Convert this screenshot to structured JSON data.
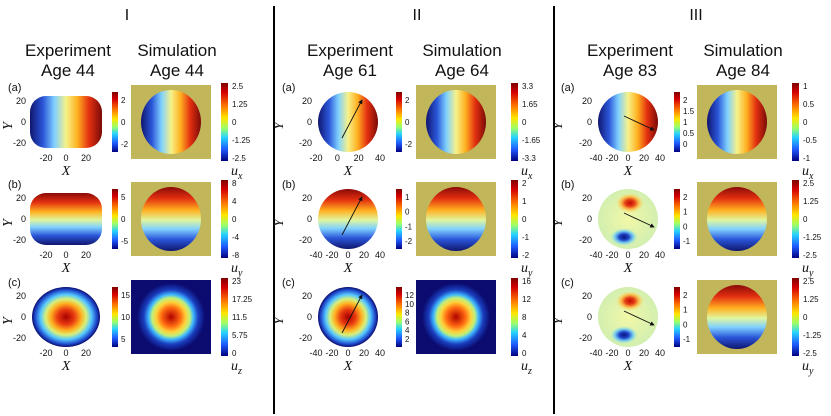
{
  "groups": [
    {
      "roman": "I",
      "left_header": [
        "Experiment",
        "Age 44"
      ],
      "right_header": [
        "Simulation",
        "Age 44"
      ],
      "rows": [
        {
          "label": "(a)",
          "var": "x",
          "exp_yticks": [
            "20",
            "0",
            "-20"
          ],
          "exp_xticks": [
            "-20",
            "0",
            "20"
          ],
          "exp_cticks": [
            "2",
            "0",
            "-2"
          ],
          "sim_cticks": [
            "2.5",
            "1.25",
            "0",
            "-1.25",
            "-2.5"
          ]
        },
        {
          "label": "(b)",
          "var": "y",
          "exp_yticks": [
            "20",
            "0",
            "-20"
          ],
          "exp_xticks": [
            "-20",
            "0",
            "20"
          ],
          "exp_cticks": [
            "5",
            "0",
            "-5"
          ],
          "sim_cticks": [
            "8",
            "4",
            "0",
            "-4",
            "-8"
          ]
        },
        {
          "label": "(c)",
          "var": "z",
          "exp_yticks": [
            "20",
            "0",
            "-20"
          ],
          "exp_xticks": [
            "-20",
            "0",
            "20"
          ],
          "exp_cticks": [
            "15",
            "10",
            "5"
          ],
          "sim_cticks": [
            "23",
            "17.25",
            "11.5",
            "5.75",
            "0"
          ]
        }
      ]
    },
    {
      "roman": "II",
      "left_header": [
        "Experiment",
        "Age 61"
      ],
      "right_header": [
        "Simulation",
        "Age 64"
      ],
      "rows": [
        {
          "label": "(a)",
          "var": "x",
          "exp_yticks": [
            "20",
            "0",
            "-20"
          ],
          "exp_xticks": [
            "-20",
            "0",
            "20",
            "40"
          ],
          "exp_cticks": [
            "2",
            "0",
            "-2"
          ],
          "sim_cticks": [
            "3.3",
            "1.65",
            "0",
            "-1.65",
            "-3.3"
          ]
        },
        {
          "label": "(b)",
          "var": "y",
          "exp_yticks": [
            "20",
            "0",
            "-20"
          ],
          "exp_xticks": [
            "-40",
            "-20",
            "0",
            "20",
            "40"
          ],
          "exp_cticks": [
            "1",
            "0",
            "-1",
            "-2"
          ],
          "sim_cticks": [
            "2",
            "1",
            "0",
            "-1",
            "-2"
          ]
        },
        {
          "label": "(c)",
          "var": "z",
          "exp_yticks": [
            "20",
            "0",
            "-20"
          ],
          "exp_xticks": [
            "-40",
            "-20",
            "0",
            "20",
            "40"
          ],
          "exp_cticks": [
            "12",
            "10",
            "8",
            "6",
            "4",
            "2"
          ],
          "sim_cticks": [
            "16",
            "12",
            "8",
            "4",
            "0"
          ]
        }
      ]
    },
    {
      "roman": "III",
      "left_header": [
        "Experiment",
        "Age 83"
      ],
      "right_header": [
        "Simulation",
        "Age 84"
      ],
      "rows": [
        {
          "label": "(a)",
          "var": "x",
          "exp_yticks": [
            "20",
            "0",
            "-20"
          ],
          "exp_xticks": [
            "-40",
            "-20",
            "0",
            "20",
            "40"
          ],
          "exp_cticks": [
            "2",
            "1.5",
            "1",
            "0.5",
            "0"
          ],
          "sim_cticks": [
            "1",
            "0.5",
            "0",
            "-0.5",
            "-1"
          ]
        },
        {
          "label": "(b)",
          "var": "y",
          "exp_yticks": [
            "20",
            "0",
            "-20"
          ],
          "exp_xticks": [
            "-40",
            "-20",
            "0",
            "20",
            "40"
          ],
          "exp_cticks": [
            "2",
            "1",
            "0",
            "-1"
          ],
          "sim_cticks": [
            "2.5",
            "1.25",
            "0",
            "-1.25",
            "-2.5"
          ]
        },
        {
          "label": "(c)",
          "var": "y",
          "exp_yticks": [
            "20",
            "0",
            "-20"
          ],
          "exp_xticks": [
            "-40",
            "-20",
            "0",
            "20",
            "40"
          ],
          "exp_cticks": [
            "2",
            "1",
            "0",
            "-1"
          ],
          "sim_cticks": [
            "2.5",
            "1.25",
            "0",
            "-1.25",
            "-2.5"
          ]
        }
      ]
    }
  ],
  "axis": {
    "x": "X",
    "y": "Y",
    "u": "u"
  },
  "colors": {
    "olive": "#c1b75a",
    "navy": "#0b0b70",
    "divider": "#000000"
  }
}
